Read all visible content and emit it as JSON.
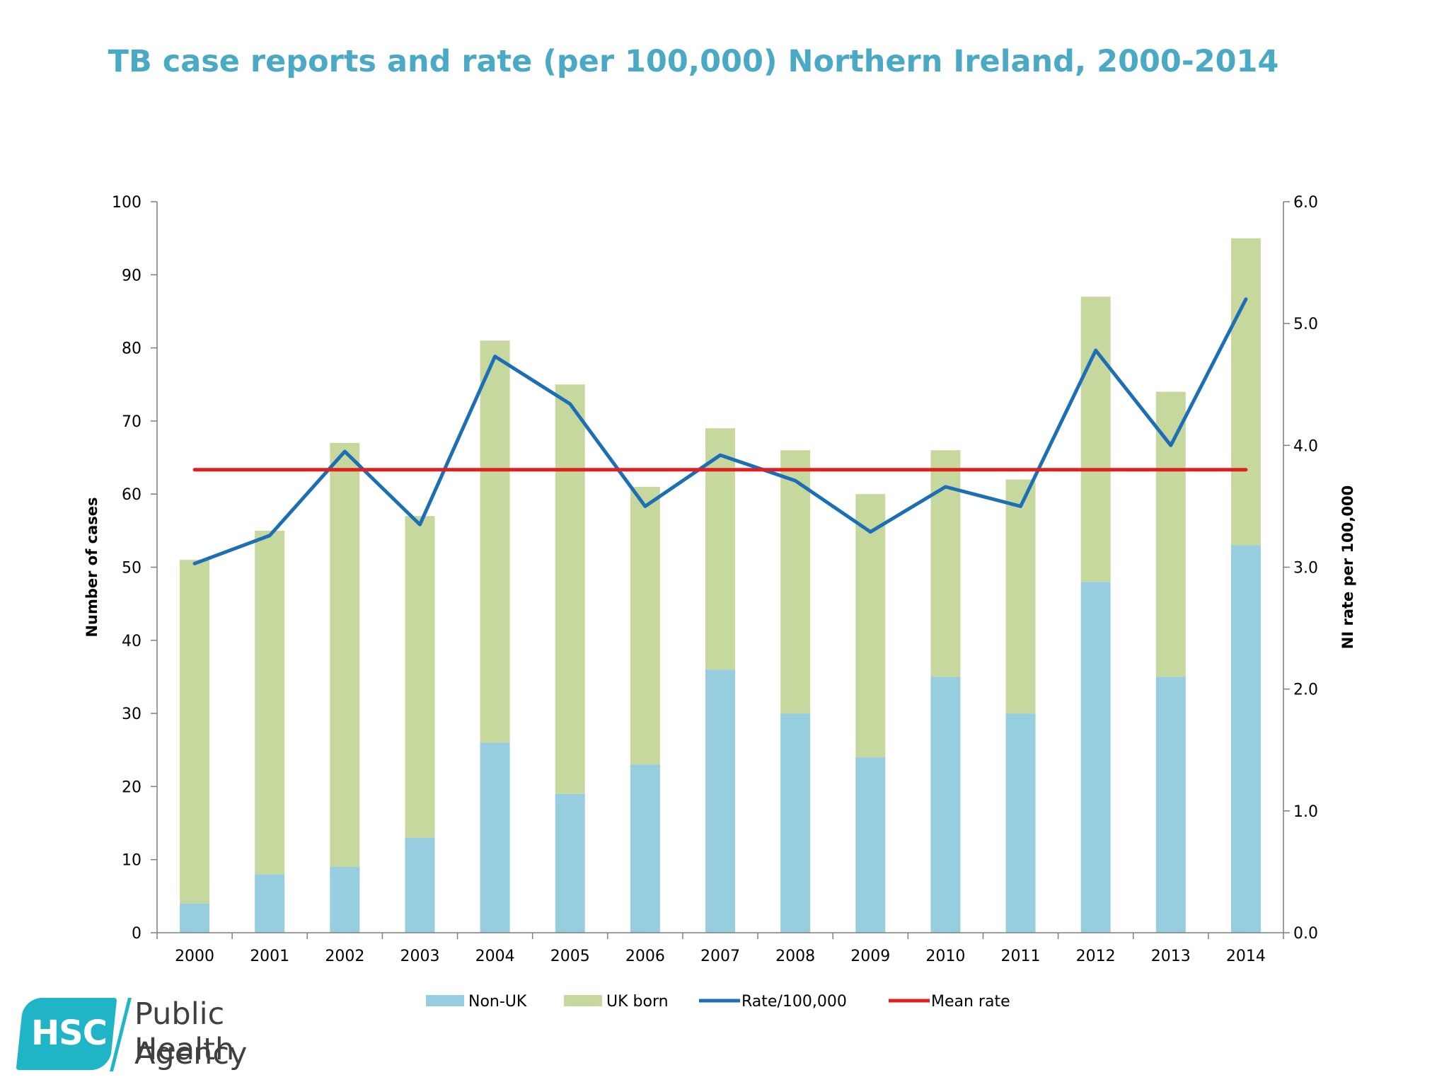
{
  "chart_data": {
    "type": "bar",
    "title": "TB case reports and rate (per 100,000) Northern Ireland, 2000-2014",
    "categories": [
      "2000",
      "2001",
      "2002",
      "2003",
      "2004",
      "2005",
      "2006",
      "2007",
      "2008",
      "2009",
      "2010",
      "2011",
      "2012",
      "2013",
      "2014"
    ],
    "stacked": true,
    "series": [
      {
        "name": "Non-UK",
        "kind": "bar",
        "axis": "left",
        "color": "#96cddf",
        "values": [
          4,
          8,
          9,
          13,
          26,
          19,
          23,
          36,
          30,
          24,
          35,
          30,
          48,
          35,
          53
        ]
      },
      {
        "name": "UK born",
        "kind": "bar",
        "axis": "left",
        "color": "#c6d89e",
        "values": [
          47,
          47,
          58,
          44,
          55,
          56,
          38,
          33,
          36,
          36,
          31,
          32,
          39,
          39,
          42
        ]
      },
      {
        "name": "Rate/100,000",
        "kind": "line",
        "axis": "right",
        "color": "#1c6fb5",
        "values": [
          3.03,
          3.26,
          3.95,
          3.35,
          4.73,
          4.34,
          3.5,
          3.92,
          3.71,
          3.29,
          3.66,
          3.5,
          4.78,
          4.0,
          5.2
        ]
      },
      {
        "name": "Mean rate",
        "kind": "line",
        "axis": "right",
        "color": "#e02020",
        "values": [
          3.8,
          3.8,
          3.8,
          3.8,
          3.8,
          3.8,
          3.8,
          3.8,
          3.8,
          3.8,
          3.8,
          3.8,
          3.8,
          3.8,
          3.8
        ]
      }
    ],
    "ylabel": "Number of cases",
    "ylim": [
      0,
      100
    ],
    "yticks": [
      "0",
      "10",
      "20",
      "30",
      "40",
      "50",
      "60",
      "70",
      "80",
      "90",
      "100"
    ],
    "y2label": "NI rate per 100,000",
    "y2lim": [
      0,
      6
    ],
    "y2ticks": [
      "0.0",
      "1.0",
      "2.0",
      "3.0",
      "4.0",
      "5.0",
      "6.0"
    ],
    "grid": false,
    "legend_position": "bottom"
  },
  "logo": {
    "box_text": "HSC",
    "line1": "Public Health",
    "line2": "Agency"
  },
  "colors": {
    "title": "#4aaac5",
    "axis": "#7f7f7f",
    "text": "#000000"
  }
}
